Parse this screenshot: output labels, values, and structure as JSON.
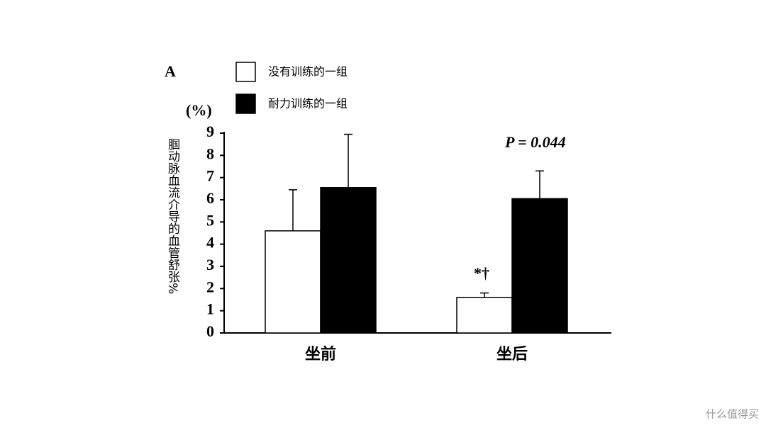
{
  "chart_data": {
    "type": "bar",
    "label": "A",
    "unit": "(%)",
    "y_label": "腘动脉血流介导的血管舒张%",
    "categories": [
      "坐前",
      "坐后"
    ],
    "series": [
      {
        "name": "没有训练的一组",
        "color": "#ffffff",
        "values": [
          4.6,
          1.6
        ],
        "errors": [
          1.85,
          0.2
        ]
      },
      {
        "name": "耐力训练的一组",
        "color": "#000000",
        "values": [
          6.55,
          6.05
        ],
        "errors": [
          2.4,
          1.25
        ]
      }
    ],
    "ylim": [
      0,
      9
    ],
    "yticks": [
      0,
      1,
      2,
      3,
      4,
      5,
      6,
      7,
      8,
      9
    ],
    "annotations": [
      "P = 0.044",
      "*†"
    ],
    "watermark": "什么值得买"
  }
}
